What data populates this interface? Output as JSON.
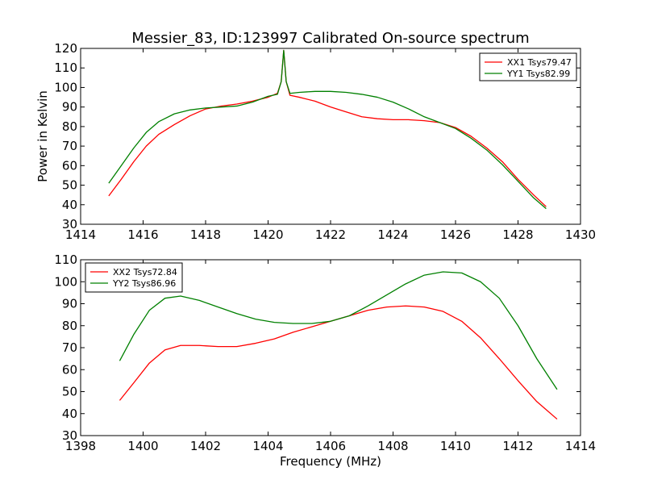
{
  "chart_data": [
    {
      "type": "line",
      "title": "Messier_83, ID:123997 Calibrated On-source spectrum",
      "xlabel": "",
      "ylabel": "Power in Kelvin",
      "xlim": [
        1414,
        1430
      ],
      "ylim": [
        30,
        120
      ],
      "xticks": [
        "1414",
        "1416",
        "1418",
        "1420",
        "1422",
        "1424",
        "1426",
        "1428",
        "1430"
      ],
      "yticks": [
        "30",
        "40",
        "50",
        "60",
        "70",
        "80",
        "90",
        "100",
        "110",
        "120"
      ],
      "legend_position": "top-right",
      "grid": false,
      "series": [
        {
          "name": "XX1 Tsys79.47",
          "color": "#ff0000",
          "x": [
            1414.9,
            1415.3,
            1415.7,
            1416.1,
            1416.5,
            1417.0,
            1417.5,
            1418.0,
            1418.5,
            1419.0,
            1419.5,
            1420.0,
            1420.3,
            1420.42,
            1420.5,
            1420.58,
            1420.7,
            1421.0,
            1421.5,
            1422.0,
            1422.5,
            1423.0,
            1423.5,
            1424.0,
            1424.5,
            1425.0,
            1425.5,
            1426.0,
            1426.5,
            1427.0,
            1427.5,
            1428.0,
            1428.5,
            1428.9
          ],
          "y": [
            44.5,
            53,
            62,
            70,
            76,
            81,
            85.5,
            89,
            90.5,
            91.5,
            93,
            95,
            97,
            103,
            119,
            103,
            96,
            95,
            93,
            90,
            87.5,
            85,
            84,
            83.5,
            83.5,
            83,
            82,
            79.5,
            75,
            69,
            62,
            53,
            45,
            39
          ]
        },
        {
          "name": "YY1 Tsys82.99",
          "color": "#008000",
          "x": [
            1414.9,
            1415.3,
            1415.7,
            1416.1,
            1416.5,
            1417.0,
            1417.5,
            1418.0,
            1418.5,
            1419.0,
            1419.5,
            1420.0,
            1420.3,
            1420.42,
            1420.5,
            1420.58,
            1420.7,
            1421.0,
            1421.5,
            1422.0,
            1422.5,
            1423.0,
            1423.5,
            1424.0,
            1424.5,
            1425.0,
            1425.5,
            1426.0,
            1426.5,
            1427.0,
            1427.5,
            1428.0,
            1428.5,
            1428.9
          ],
          "y": [
            51,
            60,
            69,
            77,
            82.5,
            86.5,
            88.5,
            89.5,
            90,
            90.5,
            92.5,
            95.5,
            96.5,
            103,
            119,
            103,
            97,
            97.5,
            98,
            98,
            97.5,
            96.5,
            95,
            92.5,
            89,
            85,
            82,
            79,
            74,
            68,
            60.5,
            52,
            43.5,
            38
          ]
        }
      ]
    },
    {
      "type": "line",
      "title": "",
      "xlabel": "Frequency (MHz)",
      "ylabel": "",
      "xlim": [
        1398,
        1414
      ],
      "ylim": [
        30,
        110
      ],
      "xticks": [
        "1398",
        "1400",
        "1402",
        "1404",
        "1406",
        "1408",
        "1410",
        "1412",
        "1414"
      ],
      "yticks": [
        "30",
        "40",
        "50",
        "60",
        "70",
        "80",
        "90",
        "100",
        "110"
      ],
      "legend_position": "top-left",
      "grid": false,
      "series": [
        {
          "name": "XX2 Tsys72.84",
          "color": "#ff0000",
          "x": [
            1399.25,
            1399.7,
            1400.2,
            1400.7,
            1401.2,
            1401.8,
            1402.4,
            1403.0,
            1403.6,
            1404.2,
            1404.8,
            1405.4,
            1406.0,
            1406.6,
            1407.2,
            1407.8,
            1408.4,
            1409.0,
            1409.6,
            1410.2,
            1410.8,
            1411.4,
            1412.0,
            1412.6,
            1413.25
          ],
          "y": [
            46,
            54,
            63,
            69,
            71,
            71,
            70.5,
            70.5,
            72,
            74,
            77,
            79.5,
            82,
            84.5,
            87,
            88.5,
            89,
            88.5,
            86.5,
            82,
            74.5,
            65,
            55,
            45.5,
            37.5
          ]
        },
        {
          "name": "YY2 Tsys86.96",
          "color": "#008000",
          "x": [
            1399.25,
            1399.7,
            1400.2,
            1400.7,
            1401.2,
            1401.8,
            1402.4,
            1403.0,
            1403.6,
            1404.2,
            1404.8,
            1405.4,
            1406.0,
            1406.6,
            1407.2,
            1407.8,
            1408.4,
            1409.0,
            1409.6,
            1410.2,
            1410.8,
            1411.4,
            1412.0,
            1412.6,
            1413.25
          ],
          "y": [
            64,
            76,
            87,
            92.5,
            93.5,
            91.5,
            88.5,
            85.5,
            83,
            81.5,
            81,
            81,
            82,
            84.5,
            89,
            94,
            99,
            103,
            104.5,
            104,
            100,
            92.5,
            80,
            65,
            51
          ]
        }
      ]
    }
  ]
}
